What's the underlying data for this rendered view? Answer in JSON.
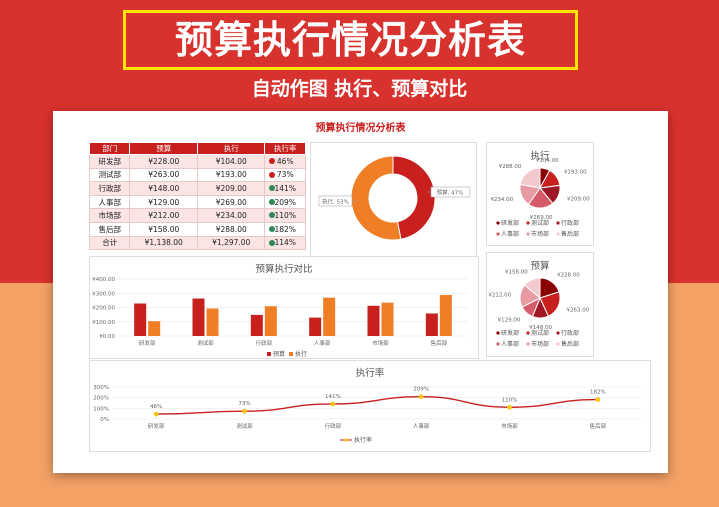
{
  "hero": {
    "title": "预算执行情况分析表",
    "subtitle": "自动作图 执行、预算对比"
  },
  "sheet": {
    "title": "预算执行情况分析表"
  },
  "table": {
    "headers": [
      "部门",
      "预算",
      "执行",
      "执行率"
    ],
    "rows": [
      {
        "dept": "研发部",
        "budget": "¥228.00",
        "actual": "¥104.00",
        "rate": "46%",
        "status": "down"
      },
      {
        "dept": "测试部",
        "budget": "¥263.00",
        "actual": "¥193.00",
        "rate": "73%",
        "status": "down"
      },
      {
        "dept": "行政部",
        "budget": "¥148.00",
        "actual": "¥209.00",
        "rate": "141%",
        "status": "up"
      },
      {
        "dept": "人事部",
        "budget": "¥129.00",
        "actual": "¥269.00",
        "rate": "209%",
        "status": "up"
      },
      {
        "dept": "市场部",
        "budget": "¥212.00",
        "actual": "¥234.00",
        "rate": "110%",
        "status": "up"
      },
      {
        "dept": "售后部",
        "budget": "¥158.00",
        "actual": "¥288.00",
        "rate": "182%",
        "status": "up"
      },
      {
        "dept": "合计",
        "budget": "¥1,138.00",
        "actual": "¥1,297.00",
        "rate": "114%",
        "status": "up"
      }
    ],
    "status_colors": {
      "down": "#c8201e",
      "up": "#2e8b57"
    }
  },
  "colors": {
    "budget": "#c8201e",
    "actual": "#f07e26",
    "line": "#c8201e",
    "marker": "#f5c518"
  },
  "chart_data": [
    {
      "id": "donut",
      "type": "pie",
      "categories": [
        "预算",
        "执行"
      ],
      "values": [
        47,
        53
      ],
      "data_labels": [
        "预算, 47%",
        "执行, 53%"
      ],
      "colors": [
        "#c8201e",
        "#f07e26"
      ]
    },
    {
      "id": "pie_actual",
      "type": "pie",
      "title": "执行",
      "categories": [
        "研发部",
        "测试部",
        "行政部",
        "人事部",
        "市场部",
        "售后部"
      ],
      "values": [
        104,
        193,
        209,
        269,
        234,
        288
      ],
      "data_labels": [
        "¥104.00",
        "¥193.00",
        "¥209.00",
        "¥269.00",
        "¥234.00",
        "¥288.00"
      ],
      "colors": [
        "#8b0000",
        "#c8201e",
        "#a01828",
        "#d75a6a",
        "#e89aa2",
        "#f4c9cd"
      ],
      "legend": "bottom"
    },
    {
      "id": "pie_budget",
      "type": "pie",
      "title": "预算",
      "categories": [
        "研发部",
        "测试部",
        "行政部",
        "人事部",
        "市场部",
        "售后部"
      ],
      "values": [
        228,
        263,
        148,
        129,
        212,
        158
      ],
      "data_labels": [
        "¥228.00",
        "¥263.00",
        "¥148.00",
        "¥129.00",
        "¥212.00",
        "¥158.00"
      ],
      "colors": [
        "#8b0000",
        "#c8201e",
        "#a01828",
        "#d75a6a",
        "#e89aa2",
        "#f4c9cd"
      ],
      "legend": "bottom"
    },
    {
      "id": "bar_compare",
      "type": "bar",
      "title": "预算执行对比",
      "categories": [
        "研发部",
        "测试部",
        "行政部",
        "人事部",
        "市场部",
        "售后部"
      ],
      "series": [
        {
          "name": "预算",
          "values": [
            228,
            263,
            148,
            129,
            212,
            158
          ]
        },
        {
          "name": "执行",
          "values": [
            104,
            193,
            209,
            269,
            234,
            288
          ]
        }
      ],
      "yticks": [
        "¥0.00",
        "¥100.00",
        "¥200.00",
        "¥300.00",
        "¥400.00"
      ],
      "ylim": [
        0,
        400
      ],
      "grid": true,
      "legend": "bottom"
    },
    {
      "id": "line_rate",
      "type": "line",
      "title": "执行率",
      "categories": [
        "研发部",
        "测试部",
        "行政部",
        "人事部",
        "市场部",
        "售后部"
      ],
      "series": [
        {
          "name": "执行率",
          "values": [
            46,
            73,
            141,
            209,
            110,
            182
          ]
        }
      ],
      "data_labels": [
        "46%",
        "73%",
        "141%",
        "209%",
        "110%",
        "182%"
      ],
      "yticks": [
        "0%",
        "100%",
        "200%",
        "300%"
      ],
      "ylim": [
        0,
        300
      ],
      "grid": true,
      "legend": "bottom"
    }
  ]
}
